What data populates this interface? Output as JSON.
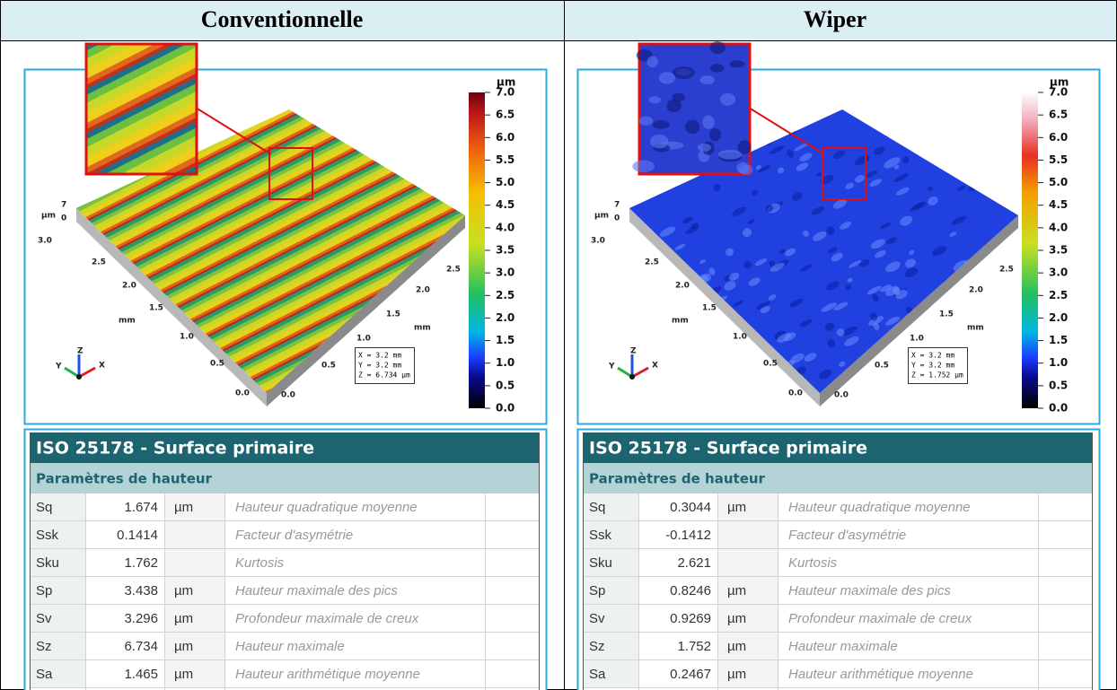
{
  "columns": [
    {
      "header": "Conventionnelle",
      "plot": {
        "colorbar_unit": "µm",
        "colorbar_ticks": [
          "7.0",
          "6.5",
          "6.0",
          "5.5",
          "5.0",
          "4.5",
          "4.0",
          "3.5",
          "3.0",
          "2.5",
          "2.0",
          "1.5",
          "1.0",
          "0.5",
          "0.0"
        ],
        "z_unit": "µm",
        "z_ticks": [
          "7",
          "0"
        ],
        "y_ticks": [
          "3.0",
          "2.5",
          "2.0",
          "1.5",
          "1.0",
          "0.5",
          "0.0"
        ],
        "y_unit": "mm",
        "x_ticks": [
          "2.5",
          "2.0",
          "1.5",
          "1.0",
          "0.5",
          "0.0"
        ],
        "x_unit": "mm",
        "triad": [
          "Z",
          "Y",
          "X"
        ],
        "info": [
          "X = 3.2 mm",
          "Y = 3.2 mm",
          "Z = 6.734 µm"
        ]
      },
      "table": {
        "title": "ISO 25178 - Surface primaire",
        "section": "Paramètres de hauteur",
        "rows": [
          [
            "Sq",
            "1.674",
            "µm",
            "Hauteur quadratique moyenne"
          ],
          [
            "Ssk",
            "0.1414",
            "",
            "Facteur d'asymétrie"
          ],
          [
            "Sku",
            "1.762",
            "",
            "Kurtosis"
          ],
          [
            "Sp",
            "3.438",
            "µm",
            "Hauteur maximale des pics"
          ],
          [
            "Sv",
            "3.296",
            "µm",
            "Profondeur maximale de creux"
          ],
          [
            "Sz",
            "6.734",
            "µm",
            "Hauteur maximale"
          ],
          [
            "Sa",
            "1.465",
            "µm",
            "Hauteur arithmétique moyenne"
          ]
        ]
      }
    },
    {
      "header": "Wiper",
      "plot": {
        "colorbar_unit": "µm",
        "colorbar_ticks": [
          "7.0",
          "6.5",
          "6.0",
          "5.5",
          "5.0",
          "4.5",
          "4.0",
          "3.5",
          "3.0",
          "2.5",
          "2.0",
          "1.5",
          "1.0",
          "0.5",
          "0.0"
        ],
        "z_unit": "µm",
        "z_ticks": [
          "7",
          "0"
        ],
        "y_ticks": [
          "3.0",
          "2.5",
          "2.0",
          "1.5",
          "1.0",
          "0.5",
          "0.0"
        ],
        "y_unit": "mm",
        "x_ticks": [
          "2.5",
          "2.0",
          "1.5",
          "1.0",
          "0.5",
          "0.0"
        ],
        "x_unit": "mm",
        "triad": [
          "Z",
          "Y",
          "X"
        ],
        "info": [
          "X = 3.2 mm",
          "Y = 3.2 mm",
          "Z = 1.752 µm"
        ]
      },
      "table": {
        "title": "ISO 25178 - Surface primaire",
        "section": "Paramètres de hauteur",
        "rows": [
          [
            "Sq",
            "0.3044",
            "µm",
            "Hauteur quadratique moyenne"
          ],
          [
            "Ssk",
            "-0.1412",
            "",
            "Facteur d'asymétrie"
          ],
          [
            "Sku",
            "2.621",
            "",
            "Kurtosis"
          ],
          [
            "Sp",
            "0.8246",
            "µm",
            "Hauteur maximale des pics"
          ],
          [
            "Sv",
            "0.9269",
            "µm",
            "Profondeur maximale de creux"
          ],
          [
            "Sz",
            "1.752",
            "µm",
            "Hauteur maximale"
          ],
          [
            "Sa",
            "0.2467",
            "µm",
            "Hauteur arithmétique moyenne"
          ]
        ]
      }
    }
  ]
}
